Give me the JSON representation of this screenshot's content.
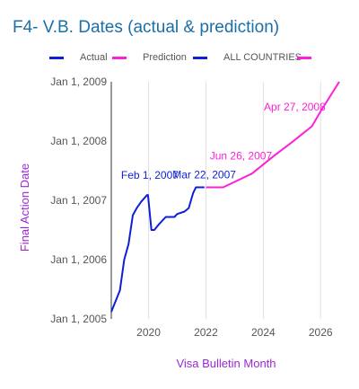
{
  "chart_data": {
    "type": "line",
    "title": "F4- V.B. Dates (actual & prediction)",
    "xlabel": "Visa Bulletin Month",
    "ylabel": "Final Action Date",
    "x_ticks": [
      "2020",
      "2022",
      "2024",
      "2026"
    ],
    "y_ticks": [
      "Jan 1, 2005",
      "Jan 1, 2006",
      "Jan 1, 2007",
      "Jan 1, 2008",
      "Jan 1, 2009"
    ],
    "xlim": [
      2018.7,
      2026.65
    ],
    "ylim": [
      2005.0,
      2009.0
    ],
    "grid": "vertical",
    "legend_position": "top",
    "colors": {
      "actual": "#0f1fd6",
      "prediction": "#ff1fd6",
      "title": "#1a6fa8",
      "axis_title": "#9c27d6",
      "grid": "#e0e0e0",
      "tick": "#555555"
    },
    "legend": [
      {
        "label": "Actual",
        "color": "#0f1fd6"
      },
      {
        "label": "Prediction",
        "color": "#ff1fd6"
      },
      {
        "label": "ALL COUNTRIES",
        "color": "#0f1fd6"
      },
      {
        "label": "",
        "color": "#ff1fd6"
      }
    ],
    "series": [
      {
        "name": "Actual",
        "x": [
          2018.7,
          2019.0,
          2019.15,
          2019.3,
          2019.45,
          2019.6,
          2019.75,
          2019.95,
          2019.98,
          2020.1,
          2020.2,
          2020.35,
          2020.6,
          2020.9,
          2021.0,
          2021.25,
          2021.4,
          2021.55,
          2021.65,
          2021.8,
          2021.95
        ],
        "y": [
          2005.12,
          2005.48,
          2006.0,
          2006.26,
          2006.75,
          2006.88,
          2006.98,
          2007.09,
          2007.09,
          2006.5,
          2006.5,
          2006.59,
          2006.72,
          2006.72,
          2006.77,
          2006.81,
          2006.87,
          2007.12,
          2007.22,
          2007.22,
          2007.22
        ]
      },
      {
        "name": "Prediction",
        "x": [
          2022.0,
          2022.6,
          2023.6,
          2024.4,
          2025.0,
          2025.7,
          2026.0,
          2026.65
        ],
        "y": [
          2007.22,
          2007.22,
          2007.45,
          2007.76,
          2007.98,
          2008.25,
          2008.5,
          2009.0
        ]
      }
    ],
    "annotations": [
      {
        "text": "Feb 1, 2007",
        "x": 2019.98,
        "y": 2007.09,
        "color": "#0f1fd6"
      },
      {
        "text": "Mar 22, 2007",
        "x": 2021.9,
        "y": 2007.22,
        "color": "#0f1fd6"
      },
      {
        "text": "Jun 26, 2007",
        "x": 2023.7,
        "y": 2007.48,
        "color": "#ff1fd6"
      },
      {
        "text": "Apr 27, 2008",
        "x": 2025.65,
        "y": 2008.32,
        "color": "#ff1fd6"
      }
    ]
  }
}
